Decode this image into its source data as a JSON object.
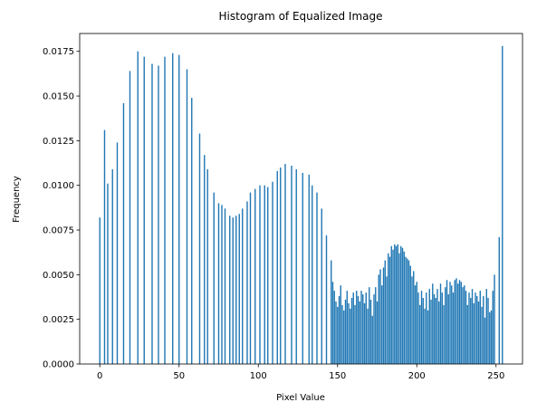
{
  "chart_data": {
    "type": "bar",
    "title": "Histogram of Equalized Image",
    "xlabel": "Pixel Value",
    "ylabel": "Frequency",
    "color": "#1f77b4",
    "x": [
      0,
      3,
      5,
      8,
      11,
      15,
      19,
      24,
      28,
      33,
      37,
      41,
      46,
      50,
      55,
      58,
      63,
      66,
      68,
      72,
      75,
      77,
      79,
      82,
      84,
      86,
      88,
      90,
      93,
      95,
      98,
      101,
      104,
      106,
      109,
      112,
      114,
      117,
      121,
      124,
      128,
      132,
      134,
      137,
      140,
      143,
      146,
      147,
      148,
      149,
      150,
      151,
      152,
      153,
      154,
      155,
      156,
      157,
      158,
      159,
      160,
      161,
      162,
      163,
      164,
      165,
      166,
      167,
      168,
      169,
      170,
      171,
      172,
      173,
      174,
      175,
      176,
      177,
      178,
      179,
      180,
      181,
      182,
      183,
      184,
      185,
      186,
      187,
      188,
      189,
      190,
      191,
      192,
      193,
      194,
      195,
      196,
      197,
      198,
      199,
      200,
      201,
      202,
      203,
      204,
      205,
      206,
      207,
      208,
      209,
      210,
      211,
      212,
      213,
      214,
      215,
      216,
      217,
      218,
      219,
      220,
      221,
      222,
      223,
      224,
      225,
      226,
      227,
      228,
      229,
      230,
      231,
      232,
      233,
      234,
      235,
      236,
      237,
      238,
      239,
      240,
      241,
      242,
      243,
      244,
      245,
      246,
      247,
      248,
      249,
      252,
      254
    ],
    "values": [
      0.0082,
      0.0131,
      0.0101,
      0.0109,
      0.0124,
      0.0146,
      0.0164,
      0.0175,
      0.0172,
      0.0168,
      0.0167,
      0.0172,
      0.0174,
      0.0173,
      0.0165,
      0.0149,
      0.0129,
      0.0117,
      0.0109,
      0.0096,
      0.009,
      0.0089,
      0.0087,
      0.0083,
      0.0082,
      0.0083,
      0.0084,
      0.0087,
      0.0091,
      0.0096,
      0.0098,
      0.01,
      0.01,
      0.0099,
      0.0102,
      0.0108,
      0.011,
      0.0112,
      0.0111,
      0.0109,
      0.0107,
      0.0106,
      0.01,
      0.0096,
      0.0087,
      0.0072,
      0.0058,
      0.0046,
      0.0041,
      0.0035,
      0.0032,
      0.0038,
      0.0044,
      0.0033,
      0.003,
      0.0036,
      0.0041,
      0.0034,
      0.0031,
      0.0037,
      0.004,
      0.0033,
      0.0041,
      0.0038,
      0.0035,
      0.0041,
      0.0039,
      0.0034,
      0.004,
      0.0031,
      0.0043,
      0.0036,
      0.0027,
      0.0039,
      0.0043,
      0.0035,
      0.005,
      0.0053,
      0.0044,
      0.0054,
      0.0058,
      0.0049,
      0.0062,
      0.006,
      0.0066,
      0.0064,
      0.0067,
      0.0066,
      0.0067,
      0.0062,
      0.0066,
      0.0065,
      0.0063,
      0.006,
      0.0059,
      0.0058,
      0.0055,
      0.0049,
      0.0052,
      0.0044,
      0.0046,
      0.004,
      0.0033,
      0.0041,
      0.0037,
      0.0031,
      0.004,
      0.003,
      0.0042,
      0.0036,
      0.0045,
      0.0039,
      0.0037,
      0.0042,
      0.0035,
      0.0045,
      0.004,
      0.0033,
      0.0043,
      0.0047,
      0.0039,
      0.0046,
      0.0044,
      0.004,
      0.0047,
      0.0048,
      0.0045,
      0.0047,
      0.0046,
      0.0043,
      0.0044,
      0.0041,
      0.0033,
      0.004,
      0.0037,
      0.0042,
      0.0034,
      0.004,
      0.0038,
      0.0035,
      0.0041,
      0.0032,
      0.0038,
      0.0026,
      0.0042,
      0.0037,
      0.0029,
      0.003,
      0.0041,
      0.005,
      0.0071,
      0.0178
    ],
    "xlim": [
      -12.7,
      266.7
    ],
    "ylim": [
      0,
      0.0185
    ],
    "xticks": [
      0,
      50,
      100,
      150,
      200,
      250
    ],
    "yticks": [
      {
        "value": 0,
        "label": "0.0000"
      },
      0.0025,
      {
        "value": 0.005,
        "label": "0.0050"
      },
      0.0075,
      {
        "value": 0.01,
        "label": "0.0100"
      },
      0.0125,
      {
        "value": 0.015,
        "label": "0.0150"
      },
      0.0175
    ]
  }
}
